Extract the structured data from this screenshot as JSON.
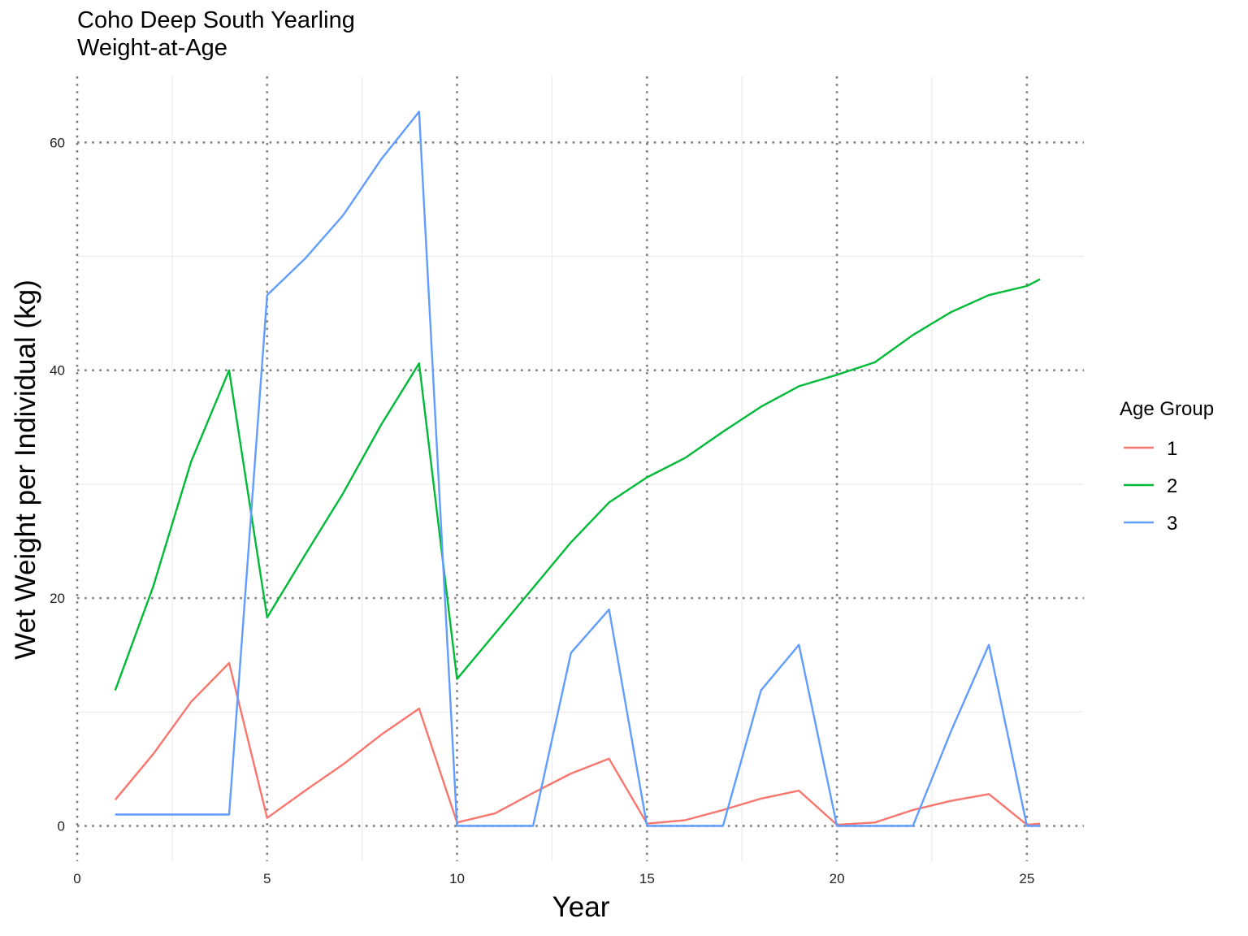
{
  "chart_data": {
    "type": "line",
    "title_line1": "Coho Deep South Yearling",
    "title_line2": "Weight-at-Age",
    "xlabel": "Year",
    "ylabel": "Wet Weight per Individual (kg)",
    "xlim": [
      0,
      26.5
    ],
    "ylim": [
      -3.1,
      65.8
    ],
    "x_ticks": [
      0,
      5,
      10,
      15,
      20,
      25
    ],
    "y_ticks": [
      0,
      20,
      40,
      60
    ],
    "x_ticks_labels": [
      "0",
      "5",
      "10",
      "15",
      "20",
      "25"
    ],
    "y_ticks_labels": [
      "0",
      "20",
      "40",
      "60"
    ],
    "grid": "on",
    "highlight_grid": "dotted at major ticks",
    "legend_title": "Age Group",
    "legend_position": "right",
    "x": [
      1,
      2,
      3,
      4,
      5,
      6,
      7,
      8,
      9,
      10,
      11,
      12,
      13,
      14,
      15,
      16,
      17,
      18,
      19,
      20,
      21,
      22,
      23,
      24,
      25,
      25.35
    ],
    "series": [
      {
        "name": "1",
        "color": "#F8766D",
        "values": [
          2.3,
          6.3,
          10.9,
          14.3,
          0.7,
          3.1,
          5.4,
          8.0,
          10.3,
          0.3,
          1.1,
          2.9,
          4.6,
          5.9,
          0.2,
          0.5,
          1.4,
          2.4,
          3.1,
          0.1,
          0.3,
          1.4,
          2.2,
          2.8,
          0.1,
          0.2
        ]
      },
      {
        "name": "2",
        "color": "#00BA38",
        "values": [
          11.9,
          21.0,
          32.0,
          40.0,
          18.3,
          23.8,
          29.2,
          35.2,
          40.6,
          12.9,
          16.9,
          20.9,
          24.9,
          28.4,
          30.6,
          32.3,
          34.6,
          36.8,
          38.6,
          39.6,
          40.7,
          43.1,
          45.1,
          46.6,
          47.4,
          48.0
        ]
      },
      {
        "name": "3",
        "color": "#619CFF",
        "values": [
          1.0,
          1.0,
          1.0,
          1.0,
          46.6,
          49.8,
          53.6,
          58.5,
          62.7,
          0.0,
          0.0,
          0.0,
          15.2,
          19.0,
          0.0,
          0.0,
          0.0,
          11.9,
          15.9,
          0.0,
          0.0,
          0.0,
          8.3,
          15.9,
          0.0,
          0.0
        ]
      }
    ]
  }
}
